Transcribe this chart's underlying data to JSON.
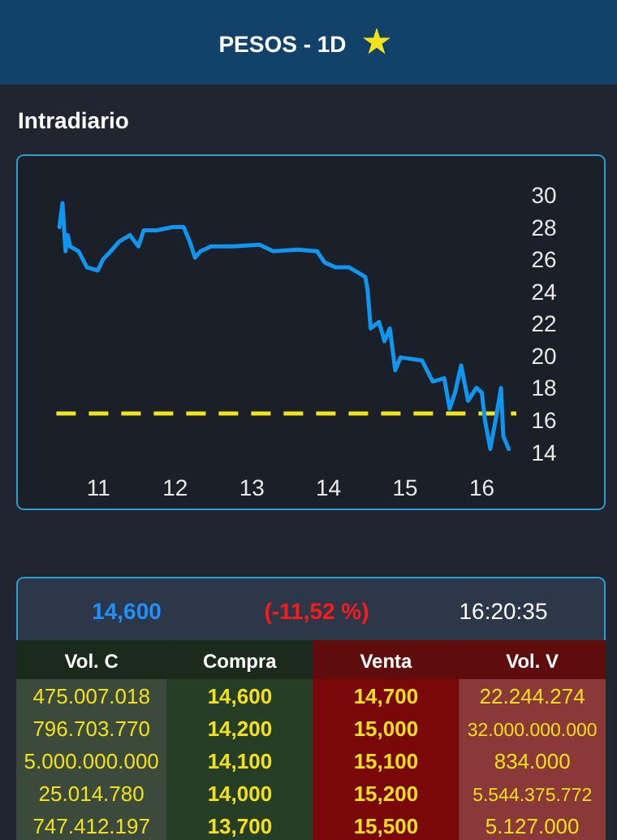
{
  "chart_data": [
    {
      "type": "line",
      "title": "PESOS - 1D",
      "subtitle": "Intradiario",
      "x": [
        10.49,
        10.53,
        10.57,
        10.6,
        10.63,
        10.74,
        10.85,
        10.99,
        11.06,
        11.16,
        11.27,
        11.41,
        11.52,
        11.59,
        11.76,
        11.97,
        12.11,
        12.19,
        12.26,
        12.33,
        12.47,
        12.75,
        13.1,
        13.28,
        13.6,
        13.85,
        13.95,
        14.09,
        14.27,
        14.48,
        14.51,
        14.55,
        14.66,
        14.73,
        14.8,
        14.87,
        14.94,
        15.22,
        15.36,
        15.51,
        15.58,
        15.65,
        15.73,
        15.82,
        15.93,
        16.0,
        16.04,
        16.11,
        16.18,
        16.25,
        16.28,
        16.35
      ],
      "series": [
        {
          "color": "#0e96f0",
          "values": [
            28.0,
            29.5,
            26.5,
            27.5,
            26.8,
            26.5,
            25.5,
            25.3,
            26.0,
            26.5,
            27.1,
            27.5,
            26.8,
            27.8,
            27.8,
            28.0,
            28.0,
            27.1,
            26.1,
            26.5,
            26.8,
            26.8,
            26.9,
            26.5,
            26.6,
            26.5,
            25.8,
            25.5,
            25.5,
            24.9,
            24.1,
            21.7,
            22.1,
            20.9,
            21.7,
            19.1,
            19.9,
            19.7,
            18.4,
            18.6,
            16.7,
            17.7,
            19.4,
            17.2,
            18.0,
            17.7,
            16.0,
            14.2,
            16.0,
            18.0,
            15.0,
            14.2
          ]
        }
      ],
      "xlim": [
        10.45,
        16.45
      ],
      "xticks": [
        11,
        12,
        13,
        14,
        15,
        16
      ],
      "ylim": [
        14,
        30
      ],
      "yticks": [
        14,
        16,
        18,
        20,
        22,
        24,
        26,
        28,
        30
      ],
      "line_style": "solid",
      "marker": "none",
      "ref_lines": [
        {
          "axis": "y",
          "value": 16.4,
          "color": "#f2e51c",
          "line_style": "dashed"
        }
      ]
    },
    {
      "type": "other",
      "annotations": [
        "14,600",
        "(-11,52 %)",
        "16:20:35"
      ],
      "categories": [
        "Vol. C",
        "Compra",
        "Venta",
        "Vol. V"
      ],
      "cell_labels": [
        [
          "475.007.018",
          "14,600",
          "14,700",
          "22.244.274"
        ],
        [
          "796.703.770",
          "14,200",
          "15,000",
          "32.000.000.000"
        ],
        [
          "5.000.000.000",
          "14,100",
          "15,100",
          "834.000"
        ],
        [
          "25.014.780",
          "14,000",
          "15,200",
          "5.544.375.772"
        ],
        [
          "747.412.197",
          "13,700",
          "15,500",
          "5.127.000"
        ]
      ]
    }
  ]
}
